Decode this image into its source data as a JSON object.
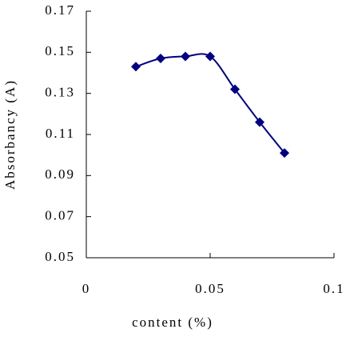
{
  "chart_data": {
    "type": "line",
    "x_label": "content (%)",
    "y_label": "Absorbancy (A)",
    "series": [
      {
        "name": "Absorbancy",
        "color": "#000080",
        "x": [
          0.02,
          0.03,
          0.04,
          0.05,
          0.06,
          0.07,
          0.08
        ],
        "values": [
          0.143,
          0.147,
          0.148,
          0.148,
          0.132,
          0.116,
          0.101
        ]
      }
    ],
    "xlim": [
      0,
      0.1
    ],
    "xticks": [
      0,
      0.05,
      0.1
    ],
    "ylim": [
      0.05,
      0.17
    ],
    "yticks": [
      0.05,
      0.07,
      0.09,
      0.11,
      0.13,
      0.15,
      0.17
    ],
    "smooth": true,
    "marker": "diamond"
  }
}
